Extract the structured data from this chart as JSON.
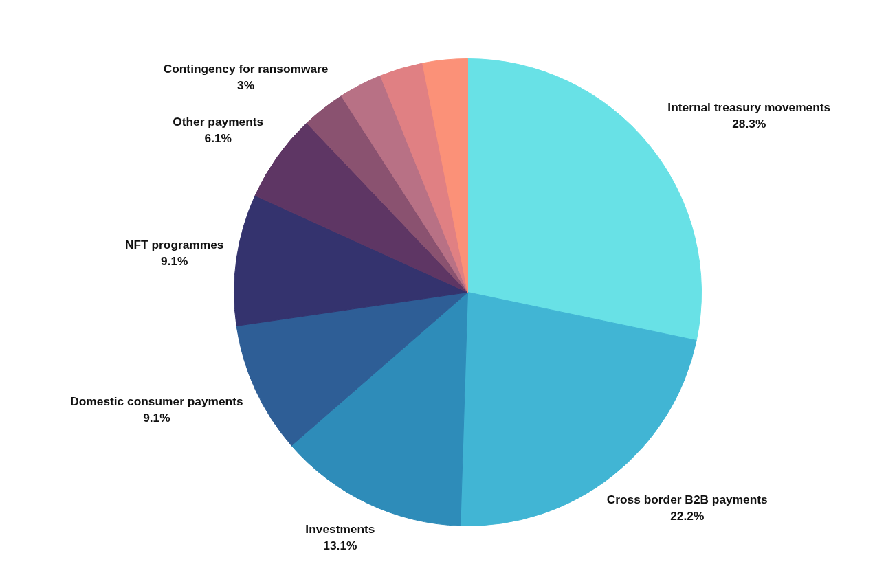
{
  "chart_data": {
    "type": "pie",
    "categories": [
      "Internal treasury movements",
      "Cross border B2B payments",
      "Investments",
      "Domestic consumer payments",
      "NFT programmes",
      "Other payments",
      "Contingency for ransomware",
      null,
      null,
      null
    ],
    "values": [
      28.3,
      22.2,
      13.1,
      9.1,
      9.1,
      6.1,
      3,
      3.0,
      3.0,
      3.1
    ],
    "value_labels": [
      "28.3%",
      "22.2%",
      "13.1%",
      "9.1%",
      "9.1%",
      "6.1%",
      "3%",
      null,
      null,
      null
    ],
    "colors": [
      "#68e1e6",
      "#41b5d4",
      "#2e8cb9",
      "#2e5e96",
      "#34336e",
      "#5e3664",
      "#8a5270",
      "#b87185",
      "#e08083",
      "#fb9178"
    ]
  }
}
